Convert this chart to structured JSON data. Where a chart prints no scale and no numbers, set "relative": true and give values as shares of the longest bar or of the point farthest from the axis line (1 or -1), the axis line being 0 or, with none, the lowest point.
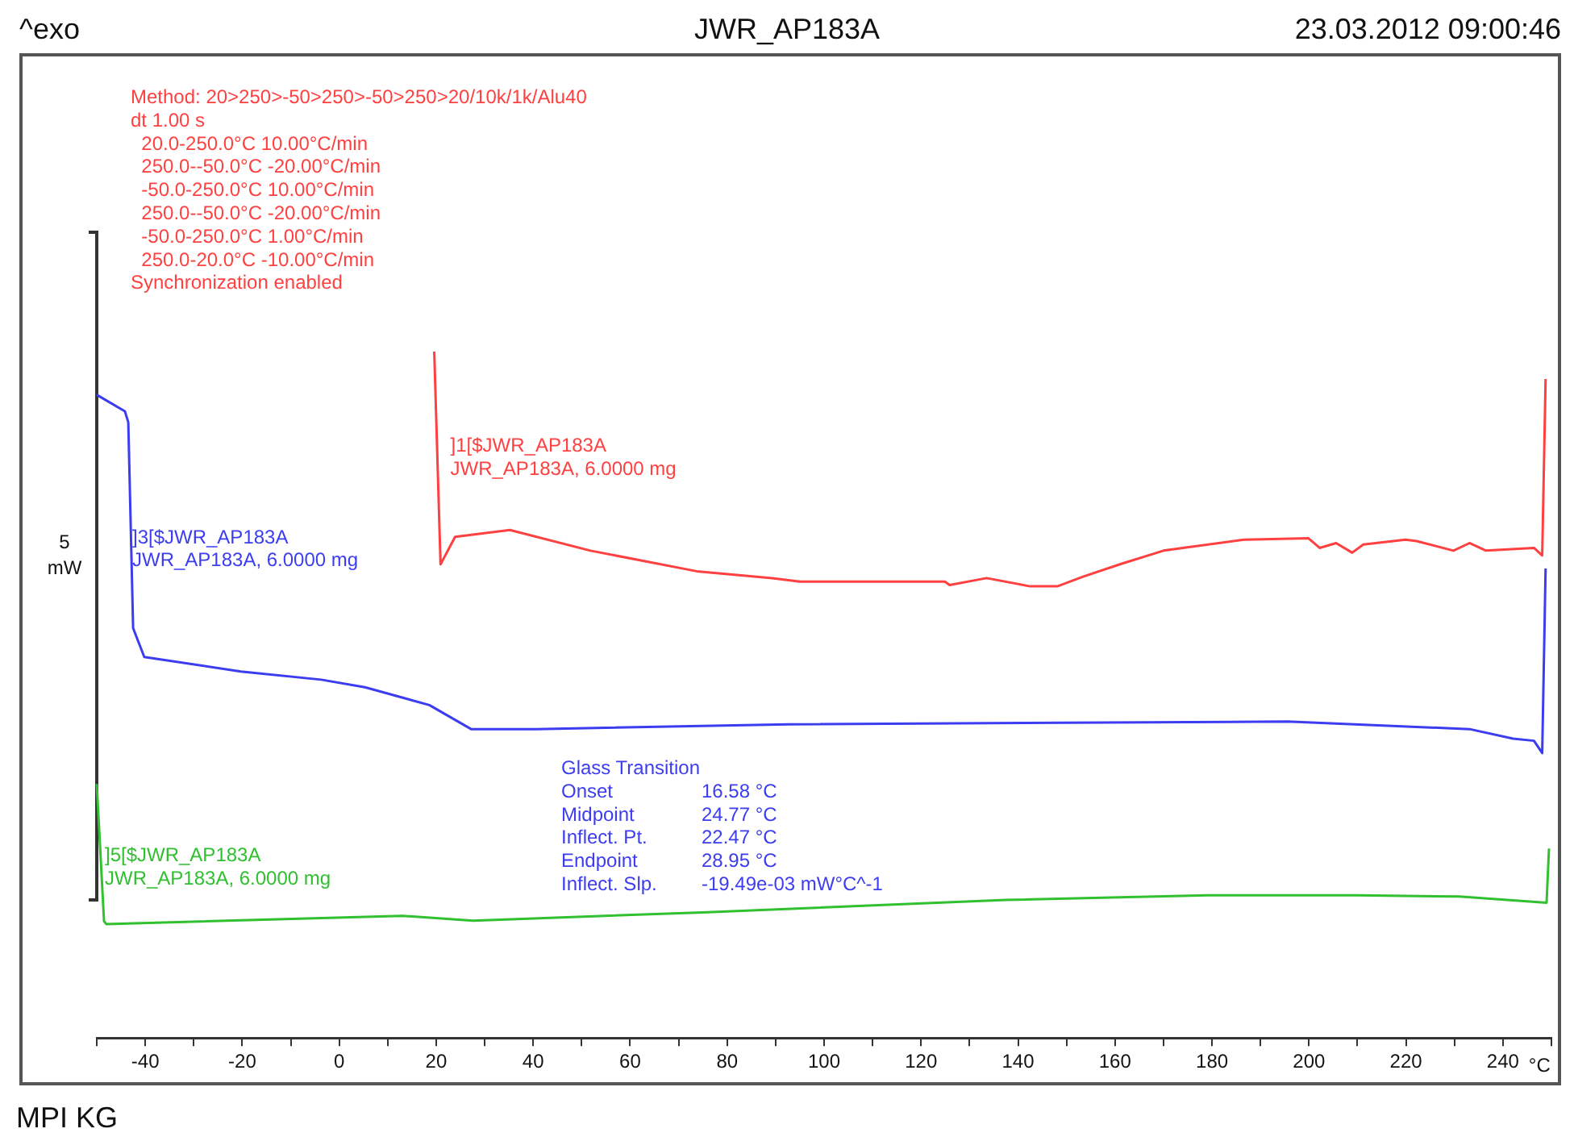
{
  "chart_data": {
    "type": "line",
    "title": "JWR_AP183A",
    "subtitle": "23.03.2012 09:00:46",
    "xlabel": "°C",
    "ylabel": "5\nmW",
    "relative": true,
    "xlim": [
      -50,
      250
    ],
    "xticks": [
      {
        "value": -50,
        "label": null
      },
      -40,
      {
        "value": -30,
        "label": null
      },
      -20,
      {
        "value": -10,
        "label": null
      },
      0,
      {
        "value": 10,
        "label": null
      },
      20,
      {
        "value": 30,
        "label": null
      },
      40,
      {
        "value": 50,
        "label": null
      },
      60,
      {
        "value": 70,
        "label": null
      },
      80,
      {
        "value": 90,
        "label": null
      },
      100,
      {
        "value": 110,
        "label": null
      },
      120,
      {
        "value": 130,
        "label": null
      },
      140,
      {
        "value": 150,
        "label": null
      },
      160,
      {
        "value": 170,
        "label": null
      },
      180,
      {
        "value": 190,
        "label": null
      },
      200,
      {
        "value": 210,
        "label": null
      },
      220,
      {
        "value": 230,
        "label": null
      },
      240,
      {
        "value": 250,
        "label": null
      }
    ],
    "series": [
      {
        "name": "]1[$JWR_AP183A\nJWR_AP183A, 6.0000 mg",
        "color": "#ff4040",
        "x": [
          19.6,
          20.9,
          23.9,
          35.2,
          51.8,
          73.7,
          89.3,
          95,
          124.9,
          125.9,
          133.5,
          142.5,
          148.1,
          153.4,
          161.4,
          170,
          186.6,
          199.9,
          202.2,
          205.6,
          208.9,
          211.2,
          219.9,
          222.2,
          229.8,
          233.1,
          236.5,
          246.4,
          248.1,
          248.8
        ],
        "values": [
          1.0,
          0.69,
          0.73,
          0.74,
          0.71,
          0.68,
          0.67,
          0.665,
          0.665,
          0.66,
          0.67,
          0.658,
          0.658,
          0.672,
          0.691,
          0.71,
          0.726,
          0.728,
          0.714,
          0.721,
          0.707,
          0.719,
          0.726,
          0.724,
          0.71,
          0.721,
          0.71,
          0.714,
          0.703,
          0.96
        ]
      },
      {
        "name": "]3[$JWR_AP183A\nJWR_AP183A, 6.0000 mg",
        "color": "#3c3cf0",
        "x": [
          -50,
          -44.2,
          -43.5,
          -42.5,
          -40.2,
          -20.3,
          -3.7,
          5.3,
          18.6,
          27.2,
          40.5,
          92.7,
          195.6,
          233.1,
          242.1,
          246.4,
          248.1,
          248.8
        ],
        "values": [
          0.937,
          0.913,
          0.897,
          0.597,
          0.555,
          0.534,
          0.522,
          0.511,
          0.485,
          0.45,
          0.45,
          0.457,
          0.461,
          0.45,
          0.436,
          0.433,
          0.415,
          0.684
        ]
      },
      {
        "name": "]5[$JWR_AP183A\nJWR_AP183A, 6.0000 mg",
        "color": "#30c030",
        "x": [
          -50,
          -48.5,
          -48,
          13,
          27.6,
          75,
          137.5,
          179,
          210,
          231,
          249,
          249.5
        ],
        "values": [
          0.37,
          0.17,
          0.166,
          0.178,
          0.171,
          0.183,
          0.201,
          0.208,
          0.208,
          0.206,
          0.197,
          0.276
        ]
      }
    ],
    "annotations": [
      "^exo",
      "Method: 20>250>-50>250>-50>250>20/10k/1k/Alu40\ndt 1.00 s\n  20.0-250.0°C 10.00°C/min\n  250.0--50.0°C -20.00°C/min\n  -50.0-250.0°C 10.00°C/min\n  250.0--50.0°C -20.00°C/min\n  -50.0-250.0°C 1.00°C/min\n  250.0-20.0°C -10.00°C/min\nSynchronization enabled",
      "Glass Transition\nOnset\t16.58 °C\nMidpoint\t24.77 °C\nInflect. Pt.\t22.47 °C\nEndpoint\t28.95 °C\nInflect. Slp.\t-19.49e-03 mW°C^-1",
      "MPI KG"
    ]
  }
}
